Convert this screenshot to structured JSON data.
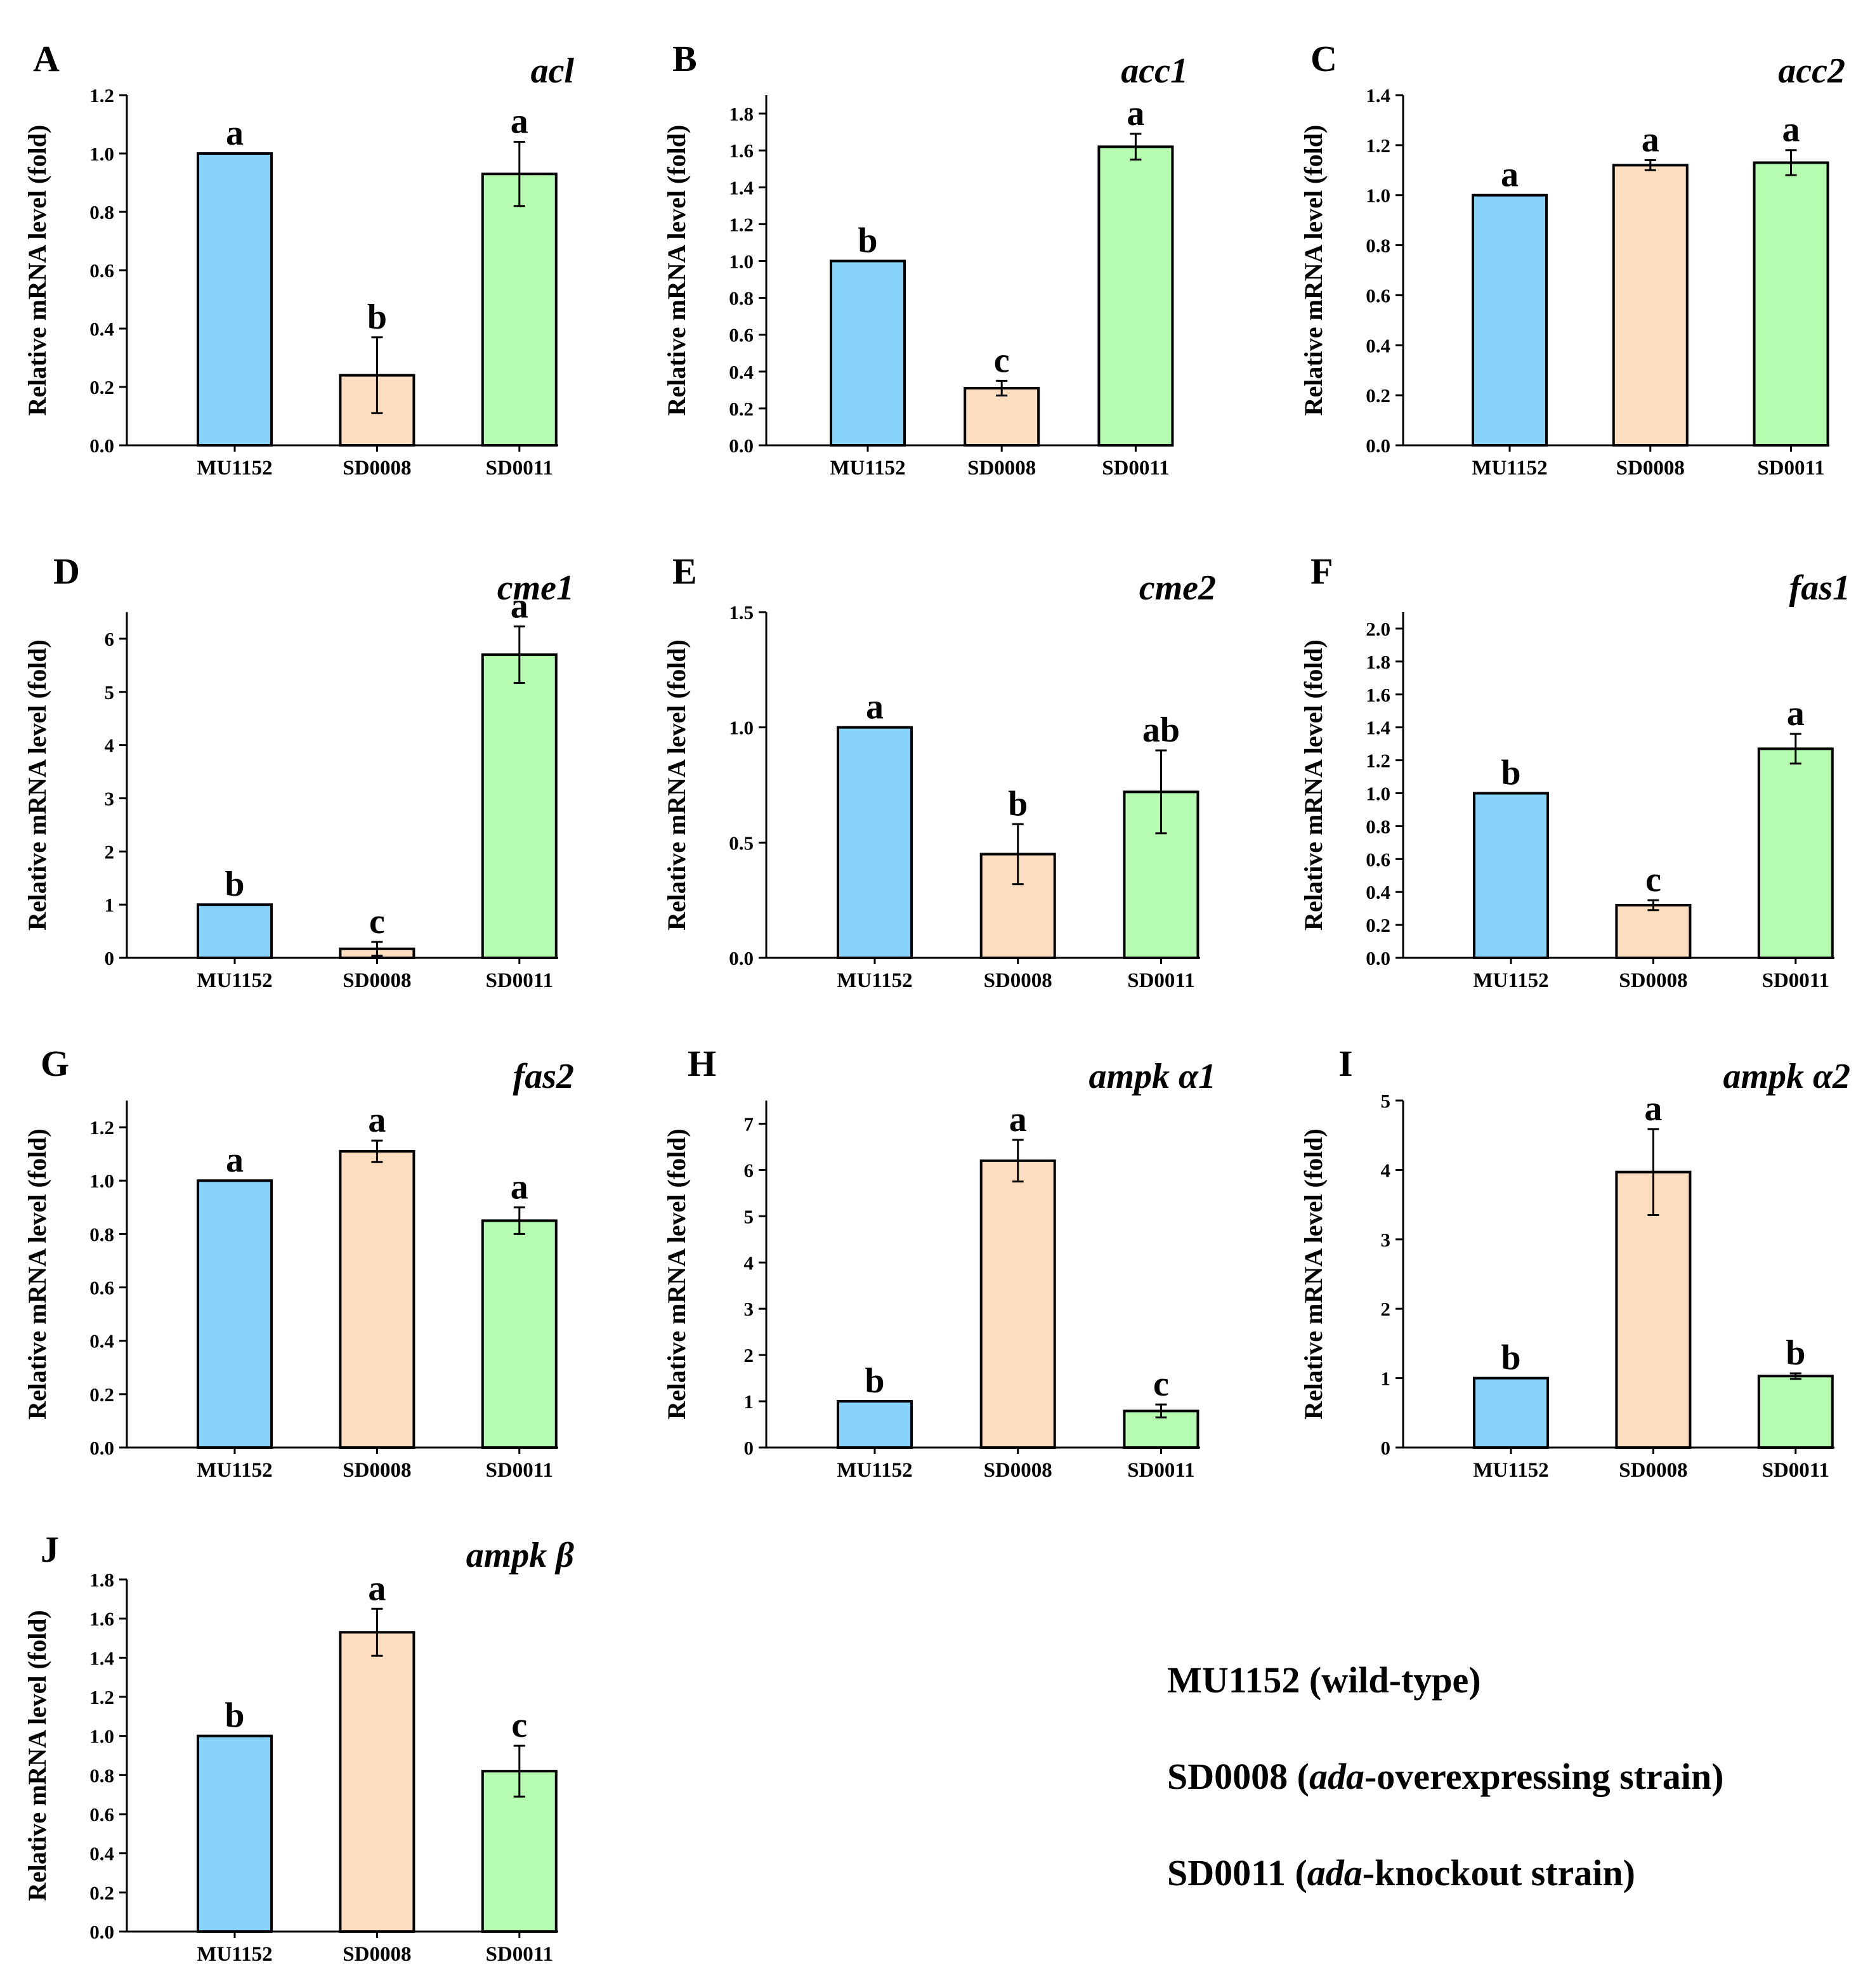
{
  "chart_data": [
    {
      "type": "bar",
      "panel": "A",
      "title": "acl",
      "ylabel": "Relative mRNA level (fold)",
      "categories": [
        "MU1152",
        "SD0008",
        "SD0011"
      ],
      "values": [
        1.0,
        0.24,
        0.93
      ],
      "errors": [
        0,
        0.13,
        0.11
      ],
      "letters": [
        "a",
        "b",
        "a"
      ],
      "ylim": [
        0,
        1.2
      ],
      "ticks": [
        "0.0",
        "0.2",
        "0.4",
        "0.6",
        "0.8",
        "1.0",
        "1.2"
      ]
    },
    {
      "type": "bar",
      "panel": "B",
      "title": "acc1",
      "ylabel": "Relative mRNA level (fold)",
      "categories": [
        "MU1152",
        "SD0008",
        "SD0011"
      ],
      "values": [
        1.0,
        0.31,
        1.62
      ],
      "errors": [
        0,
        0.04,
        0.07
      ],
      "letters": [
        "b",
        "c",
        "a"
      ],
      "ylim": [
        0,
        1.9
      ],
      "ticks": [
        "0.0",
        "0.2",
        "0.4",
        "0.6",
        "0.8",
        "1.0",
        "1.2",
        "1.4",
        "1.6",
        "1.8"
      ]
    },
    {
      "type": "bar",
      "panel": "C",
      "title": "acc2",
      "ylabel": "Relative mRNA level (fold)",
      "categories": [
        "MU1152",
        "SD0008",
        "SD0011"
      ],
      "values": [
        1.0,
        1.12,
        1.13
      ],
      "errors": [
        0,
        0.02,
        0.05
      ],
      "letters": [
        "a",
        "a",
        "a"
      ],
      "ylim": [
        0,
        1.4
      ],
      "ticks": [
        "0.0",
        "0.2",
        "0.4",
        "0.6",
        "0.8",
        "1.0",
        "1.2",
        "1.4"
      ]
    },
    {
      "type": "bar",
      "panel": "D",
      "title": "cme1",
      "ylabel": "Relative mRNA level (fold)",
      "categories": [
        "MU1152",
        "SD0008",
        "SD0011"
      ],
      "values": [
        1.0,
        0.17,
        5.7
      ],
      "errors": [
        0,
        0.13,
        0.53
      ],
      "letters": [
        "b",
        "c",
        "a"
      ],
      "ylim": [
        0,
        6.5
      ],
      "ticks": [
        "0",
        "1",
        "2",
        "3",
        "4",
        "5",
        "6"
      ]
    },
    {
      "type": "bar",
      "panel": "E",
      "title": "cme2",
      "ylabel": "Relative mRNA level (fold)",
      "categories": [
        "MU1152",
        "SD0008",
        "SD0011"
      ],
      "values": [
        1.0,
        0.45,
        0.72
      ],
      "errors": [
        0,
        0.13,
        0.18
      ],
      "letters": [
        "a",
        "b",
        "ab"
      ],
      "ylim": [
        0,
        1.5
      ],
      "ticks": [
        "0.0",
        "0.5",
        "1.0",
        "1.5"
      ]
    },
    {
      "type": "bar",
      "panel": "F",
      "title": "fas1",
      "ylabel": "Relative mRNA level (fold)",
      "categories": [
        "MU1152",
        "SD0008",
        "SD0011"
      ],
      "values": [
        1.0,
        0.32,
        1.27
      ],
      "errors": [
        0,
        0.03,
        0.09
      ],
      "letters": [
        "b",
        "c",
        "a"
      ],
      "ylim": [
        0,
        2.1
      ],
      "ticks": [
        "0.0",
        "0.2",
        "0.4",
        "0.6",
        "0.8",
        "1.0",
        "1.2",
        "1.4",
        "1.6",
        "1.8",
        "2.0"
      ]
    },
    {
      "type": "bar",
      "panel": "G",
      "title": "fas2",
      "ylabel": "Relative mRNA level (fold)",
      "categories": [
        "MU1152",
        "SD0008",
        "SD0011"
      ],
      "values": [
        1.0,
        1.11,
        0.85
      ],
      "errors": [
        0,
        0.04,
        0.05
      ],
      "letters": [
        "a",
        "a",
        "a"
      ],
      "ylim": [
        0,
        1.3
      ],
      "ticks": [
        "0.0",
        "0.2",
        "0.4",
        "0.6",
        "0.8",
        "1.0",
        "1.2"
      ]
    },
    {
      "type": "bar",
      "panel": "H",
      "title": "ampk α1",
      "ylabel": "Relative mRNA level (fold)",
      "categories": [
        "MU1152",
        "SD0008",
        "SD0011"
      ],
      "values": [
        1.0,
        6.2,
        0.79
      ],
      "errors": [
        0,
        0.45,
        0.14
      ],
      "letters": [
        "b",
        "a",
        "c"
      ],
      "ylim": [
        0,
        7.5
      ],
      "ticks": [
        "0",
        "1",
        "2",
        "3",
        "4",
        "5",
        "6",
        "7"
      ]
    },
    {
      "type": "bar",
      "panel": "I",
      "title": "ampk α2",
      "ylabel": "Relative mRNA level (fold)",
      "categories": [
        "MU1152",
        "SD0008",
        "SD0011"
      ],
      "values": [
        1.0,
        3.97,
        1.03
      ],
      "errors": [
        0,
        0.62,
        0.04
      ],
      "letters": [
        "b",
        "a",
        "b"
      ],
      "ylim": [
        0,
        5
      ],
      "ticks": [
        "0",
        "1",
        "2",
        "3",
        "4",
        "5"
      ]
    },
    {
      "type": "bar",
      "panel": "J",
      "title": "ampk β",
      "ylabel": "Relative mRNA level (fold)",
      "categories": [
        "MU1152",
        "SD0008",
        "SD0011"
      ],
      "values": [
        1.0,
        1.53,
        0.82
      ],
      "errors": [
        0,
        0.12,
        0.13
      ],
      "letters": [
        "b",
        "a",
        "c"
      ],
      "ylim": [
        0,
        1.8
      ],
      "ticks": [
        "0.0",
        "0.2",
        "0.4",
        "0.6",
        "0.8",
        "1.0",
        "1.2",
        "1.4",
        "1.6",
        "1.8"
      ]
    }
  ],
  "colors": {
    "MU1152": "#87d3fa",
    "SD0008": "#fcddbf",
    "SD0011": "#b5fbb0",
    "axis": "#000000"
  },
  "legend": {
    "line1": "MU1152 (wild-type)",
    "line2_prefix": "SD0008 (",
    "line2_italic": "ada",
    "line2_suffix": "-overexpressing strain)",
    "line3_prefix": "SD0011 (",
    "line3_italic": "ada",
    "line3_suffix": "-knockout strain)"
  }
}
